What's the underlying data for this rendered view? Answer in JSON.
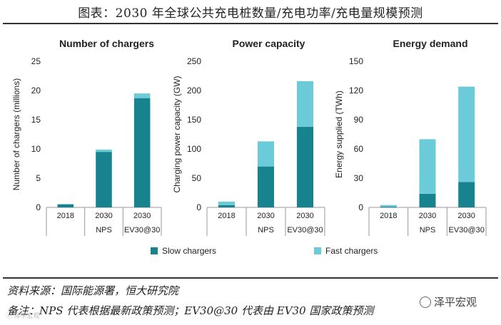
{
  "figure": {
    "title": "图表：2030 年全球公共充电桩数量/充电功率/充电量规模预测",
    "source": "资料来源：国际能源署，恒大研究院",
    "note": "备注：NPS 代表根据最新政策预测；EV30@30 代表由 EV30 国家政策预测",
    "watermark": "泽平宏观",
    "watermark_small": "ⓒ 泽平宏观",
    "watermark_icon": "wechat-icon"
  },
  "legend": {
    "slow_label": "Slow chargers",
    "fast_label": "Fast chargers"
  },
  "colors": {
    "slow": "#17838f",
    "fast": "#6ccbd8",
    "axis": "#999999",
    "text": "#222222"
  },
  "chart_data": [
    {
      "type": "bar",
      "stacked": true,
      "title": "Number of chargers",
      "ylabel": "Number of chargers (millions)",
      "ylim": [
        0,
        25
      ],
      "yticks": [
        0,
        5,
        10,
        15,
        20,
        25
      ],
      "categories": [
        "2018",
        "2030",
        "2030"
      ],
      "category_sublabels": [
        "",
        "NPS",
        "EV30@30"
      ],
      "series": [
        {
          "name": "Slow chargers",
          "values": [
            0.5,
            9.5,
            18.7
          ]
        },
        {
          "name": "Fast chargers",
          "values": [
            0.1,
            0.4,
            0.8
          ]
        }
      ]
    },
    {
      "type": "bar",
      "stacked": true,
      "title": "Power capacity",
      "ylabel": "Charging power capacity (GW)",
      "ylim": [
        0,
        250
      ],
      "yticks": [
        0,
        50,
        100,
        150,
        200,
        250
      ],
      "categories": [
        "2018",
        "2030",
        "2030"
      ],
      "category_sublabels": [
        "",
        "NPS",
        "EV30@30"
      ],
      "series": [
        {
          "name": "Slow chargers",
          "values": [
            4,
            70,
            138
          ]
        },
        {
          "name": "Fast chargers",
          "values": [
            6,
            43,
            78
          ]
        }
      ]
    },
    {
      "type": "bar",
      "stacked": true,
      "title": "Energy demand",
      "ylabel": "Energy supplied (TWh)",
      "ylim": [
        0,
        150
      ],
      "yticks": [
        0,
        30,
        60,
        90,
        120,
        150
      ],
      "categories": [
        "2018",
        "2030",
        "2030"
      ],
      "category_sublabels": [
        "",
        "NPS",
        "EV30@30"
      ],
      "series": [
        {
          "name": "Slow chargers",
          "values": [
            0.8,
            14,
            26
          ]
        },
        {
          "name": "Fast chargers",
          "values": [
            1.7,
            56,
            98
          ]
        }
      ]
    }
  ]
}
